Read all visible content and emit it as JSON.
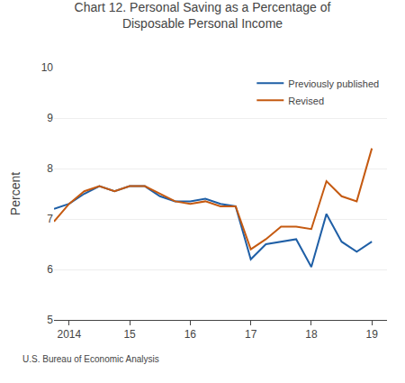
{
  "chart_data": {
    "type": "line",
    "title": "Chart 12. Personal Saving as a Percentage of\nDisposable Personal Income",
    "ylabel": "Percent",
    "annotations": [
      "U.S. Bureau of Economic Analysis"
    ],
    "x": [
      2013.75,
      2014.0,
      2014.25,
      2014.5,
      2014.75,
      2015.0,
      2015.25,
      2015.5,
      2015.75,
      2016.0,
      2016.25,
      2016.5,
      2016.75,
      2017.0,
      2017.25,
      2017.5,
      2017.75,
      2018.0,
      2018.25,
      2018.5,
      2018.75,
      2019.0
    ],
    "series": [
      {
        "name": "Previously published",
        "color": "#1f5fa6",
        "values": [
          7.2,
          7.3,
          7.5,
          7.65,
          7.55,
          7.65,
          7.65,
          7.45,
          7.35,
          7.35,
          7.4,
          7.3,
          7.25,
          6.2,
          6.5,
          6.55,
          6.6,
          6.05,
          7.1,
          6.55,
          6.35,
          6.55
        ]
      },
      {
        "name": "Revised",
        "color": "#c55a11",
        "values": [
          6.95,
          7.3,
          7.55,
          7.65,
          7.55,
          7.65,
          7.65,
          7.5,
          7.35,
          7.3,
          7.35,
          7.25,
          7.25,
          6.4,
          6.6,
          6.85,
          6.85,
          6.8,
          7.75,
          7.45,
          7.35,
          8.4
        ]
      }
    ],
    "xlim": [
      2013.75,
      2019.25
    ],
    "xticks": [
      2014,
      {
        "value": 2015,
        "label": "15"
      },
      {
        "value": 2016,
        "label": "16"
      },
      {
        "value": 2017,
        "label": "17"
      },
      {
        "value": 2018,
        "label": "18"
      },
      {
        "value": 2019,
        "label": "19"
      }
    ],
    "ylim": [
      5,
      10
    ],
    "yticks": [
      5,
      6,
      7,
      8,
      9,
      10
    ],
    "grid": "y",
    "legend": "upper right"
  }
}
